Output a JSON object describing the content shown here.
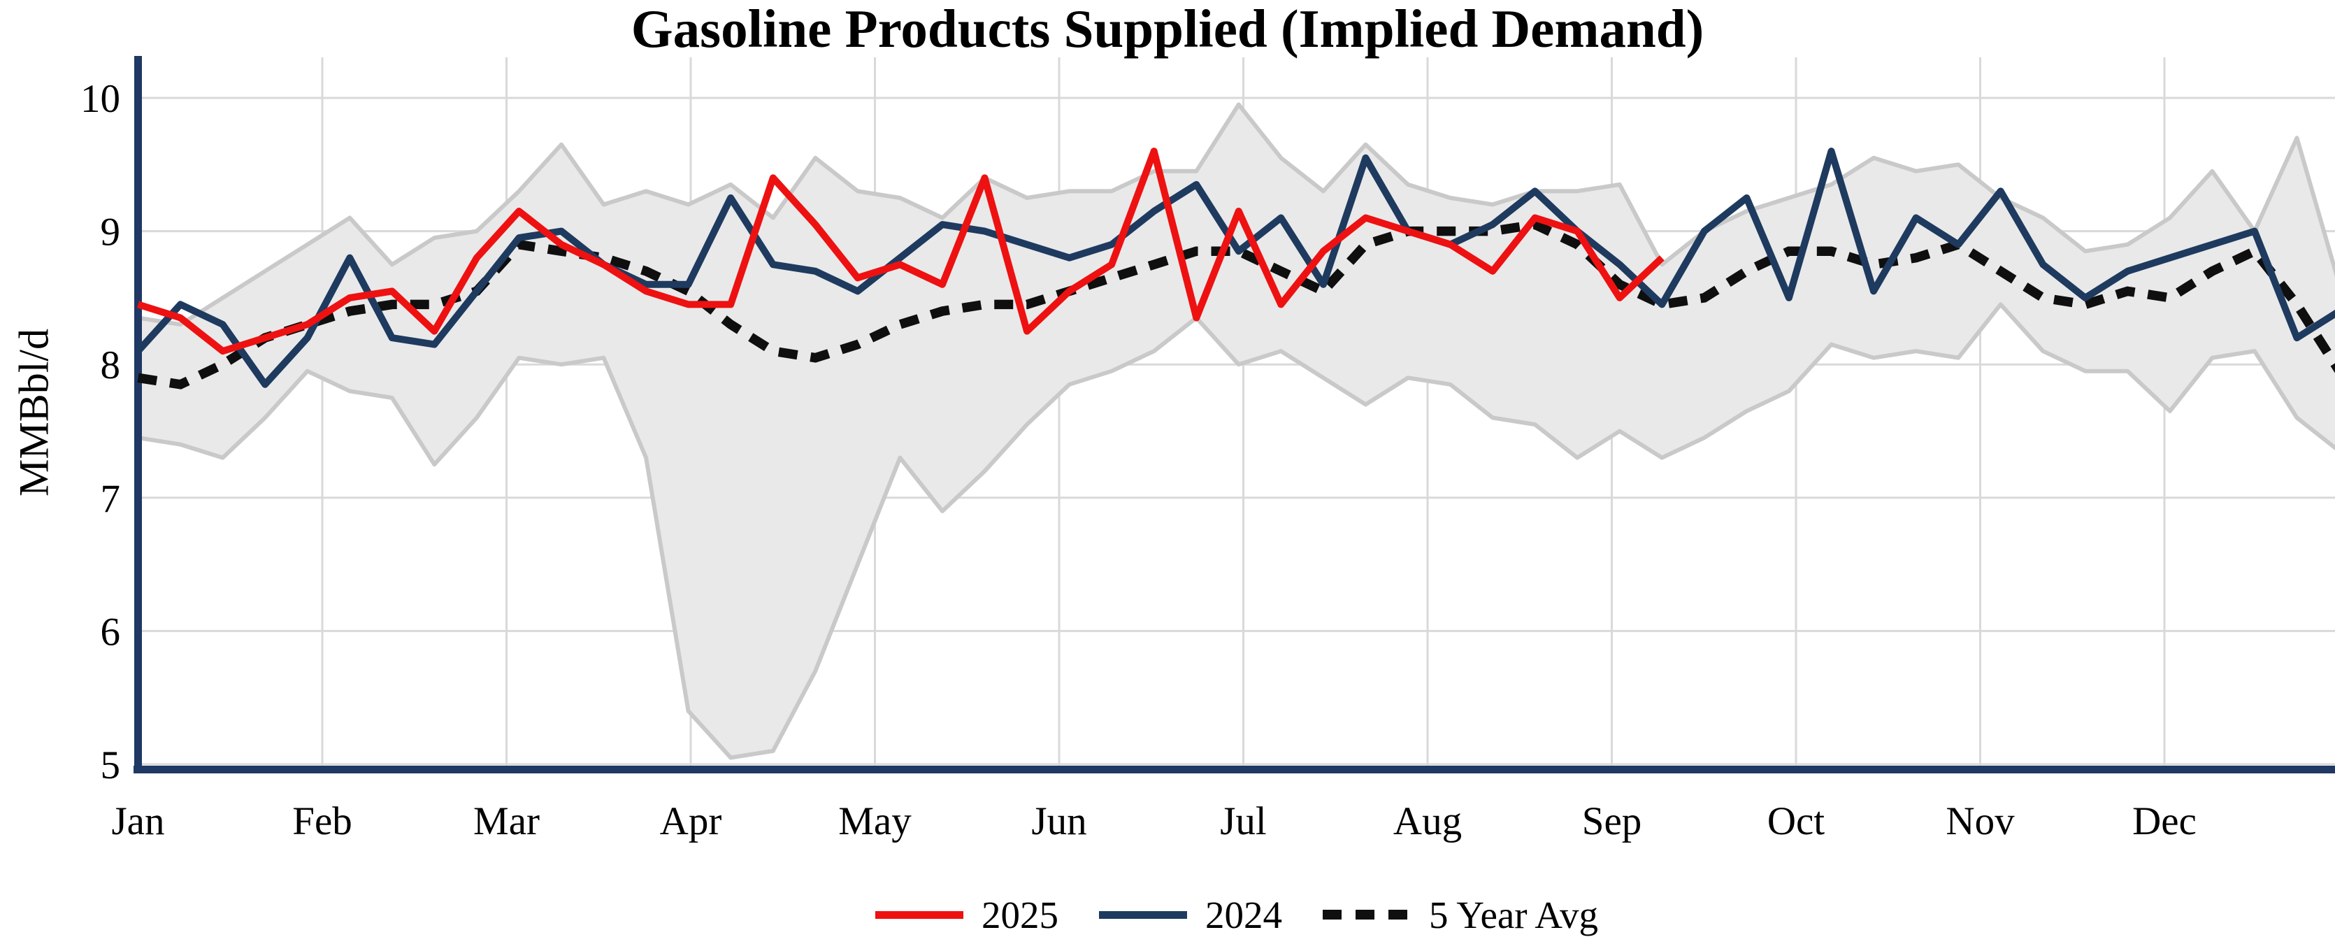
{
  "title": "Gasoline Products Supplied (Implied Demand)",
  "y_axis": {
    "label": "MMBbl/d",
    "ticks": [
      10,
      9,
      8,
      7,
      6,
      5
    ],
    "min": 5,
    "max": 10
  },
  "x_axis": {
    "months": [
      "Jan",
      "Feb",
      "Mar",
      "Apr",
      "May",
      "Jun",
      "Jul",
      "Aug",
      "Sep",
      "Oct",
      "Nov",
      "Dec"
    ]
  },
  "legend": {
    "items": [
      {
        "label": "2025",
        "style": "solid",
        "color": "#ee1111"
      },
      {
        "label": "2024",
        "style": "solid",
        "color": "#1e3a5f"
      },
      {
        "label": "5 Year Avg",
        "style": "dotted",
        "color": "#0f0f0f"
      }
    ]
  },
  "colors": {
    "series_2025": "#ee1111",
    "series_2024": "#1e3a5f",
    "series_avg": "#0f0f0f",
    "band_fill": "#e9e9e9",
    "band_edge": "#c9c9c9",
    "grid": "#d9d9d9",
    "axis": "#1f3864",
    "text": "#000000"
  },
  "chart_data": {
    "type": "line",
    "title": "Gasoline Products Supplied (Implied Demand)",
    "xlabel": "",
    "ylabel": "MMBbl/d",
    "ylim": [
      5,
      10
    ],
    "x_unit": "weekly, Jan through Dec",
    "categories_months": [
      "Jan",
      "Feb",
      "Mar",
      "Apr",
      "May",
      "Jun",
      "Jul",
      "Aug",
      "Sep",
      "Oct",
      "Nov",
      "Dec"
    ],
    "grid": true,
    "legend_position": "bottom",
    "series": [
      {
        "name": "2025",
        "type": "line",
        "values": [
          8.45,
          8.35,
          8.1,
          8.2,
          8.3,
          8.5,
          8.55,
          8.25,
          8.8,
          9.15,
          8.9,
          8.75,
          8.55,
          8.45,
          8.45,
          9.4,
          9.05,
          8.65,
          8.75,
          8.6,
          9.4,
          8.25,
          8.55,
          8.75,
          9.6,
          8.35,
          9.15,
          8.45,
          8.85,
          9.1,
          9.0,
          8.9,
          8.7,
          9.1,
          9.0,
          8.5,
          8.8
        ]
      },
      {
        "name": "2024",
        "type": "line",
        "values": [
          8.1,
          8.45,
          8.3,
          7.85,
          8.2,
          8.8,
          8.2,
          8.15,
          8.55,
          8.95,
          9.0,
          8.75,
          8.6,
          8.6,
          9.25,
          8.75,
          8.7,
          8.55,
          8.8,
          9.05,
          9.0,
          8.9,
          8.8,
          8.9,
          9.15,
          9.35,
          8.85,
          9.1,
          8.6,
          9.55,
          9.0,
          8.9,
          9.05,
          9.3,
          9.0,
          8.75,
          8.45,
          9.0,
          9.25,
          8.5,
          9.6,
          8.55,
          9.1,
          8.9,
          9.3,
          8.75,
          8.5,
          8.7,
          8.8,
          8.9,
          9.0,
          8.2,
          8.4
        ]
      },
      {
        "name": "5 Year Avg",
        "type": "line",
        "values": [
          7.9,
          7.85,
          8.0,
          8.2,
          8.3,
          8.4,
          8.45,
          8.45,
          8.55,
          8.9,
          8.85,
          8.8,
          8.7,
          8.55,
          8.3,
          8.1,
          8.05,
          8.15,
          8.3,
          8.4,
          8.45,
          8.45,
          8.55,
          8.65,
          8.75,
          8.85,
          8.85,
          8.7,
          8.55,
          8.9,
          9.0,
          9.0,
          9.0,
          9.05,
          8.9,
          8.6,
          8.45,
          8.5,
          8.7,
          8.85,
          8.85,
          8.75,
          8.8,
          8.9,
          8.7,
          8.5,
          8.45,
          8.55,
          8.5,
          8.7,
          8.85,
          8.45,
          7.95
        ]
      },
      {
        "name": "5 Year Range",
        "type": "band",
        "upper": [
          8.35,
          8.3,
          8.5,
          8.7,
          8.9,
          9.1,
          8.75,
          8.95,
          9.0,
          9.3,
          9.65,
          9.2,
          9.3,
          9.2,
          9.35,
          9.1,
          9.55,
          9.3,
          9.25,
          9.1,
          9.4,
          9.25,
          9.3,
          9.3,
          9.45,
          9.45,
          9.95,
          9.55,
          9.3,
          9.65,
          9.35,
          9.25,
          9.2,
          9.3,
          9.3,
          9.35,
          8.75,
          9.0,
          9.15,
          9.25,
          9.35,
          9.55,
          9.45,
          9.5,
          9.25,
          9.1,
          8.85,
          8.9,
          9.1,
          9.45,
          9.0,
          9.7,
          8.6
        ],
        "lower": [
          7.45,
          7.4,
          7.3,
          7.6,
          7.95,
          7.8,
          7.75,
          7.25,
          7.6,
          8.05,
          8.0,
          8.05,
          7.3,
          5.4,
          5.05,
          5.1,
          5.7,
          6.5,
          7.3,
          6.9,
          7.2,
          7.55,
          7.85,
          7.95,
          8.1,
          8.35,
          8.0,
          8.1,
          7.9,
          7.7,
          7.9,
          7.85,
          7.6,
          7.55,
          7.3,
          7.5,
          7.3,
          7.45,
          7.65,
          7.8,
          8.15,
          8.05,
          8.1,
          8.05,
          8.45,
          8.1,
          7.95,
          7.95,
          7.65,
          8.05,
          8.1,
          7.6,
          7.35
        ]
      }
    ]
  }
}
